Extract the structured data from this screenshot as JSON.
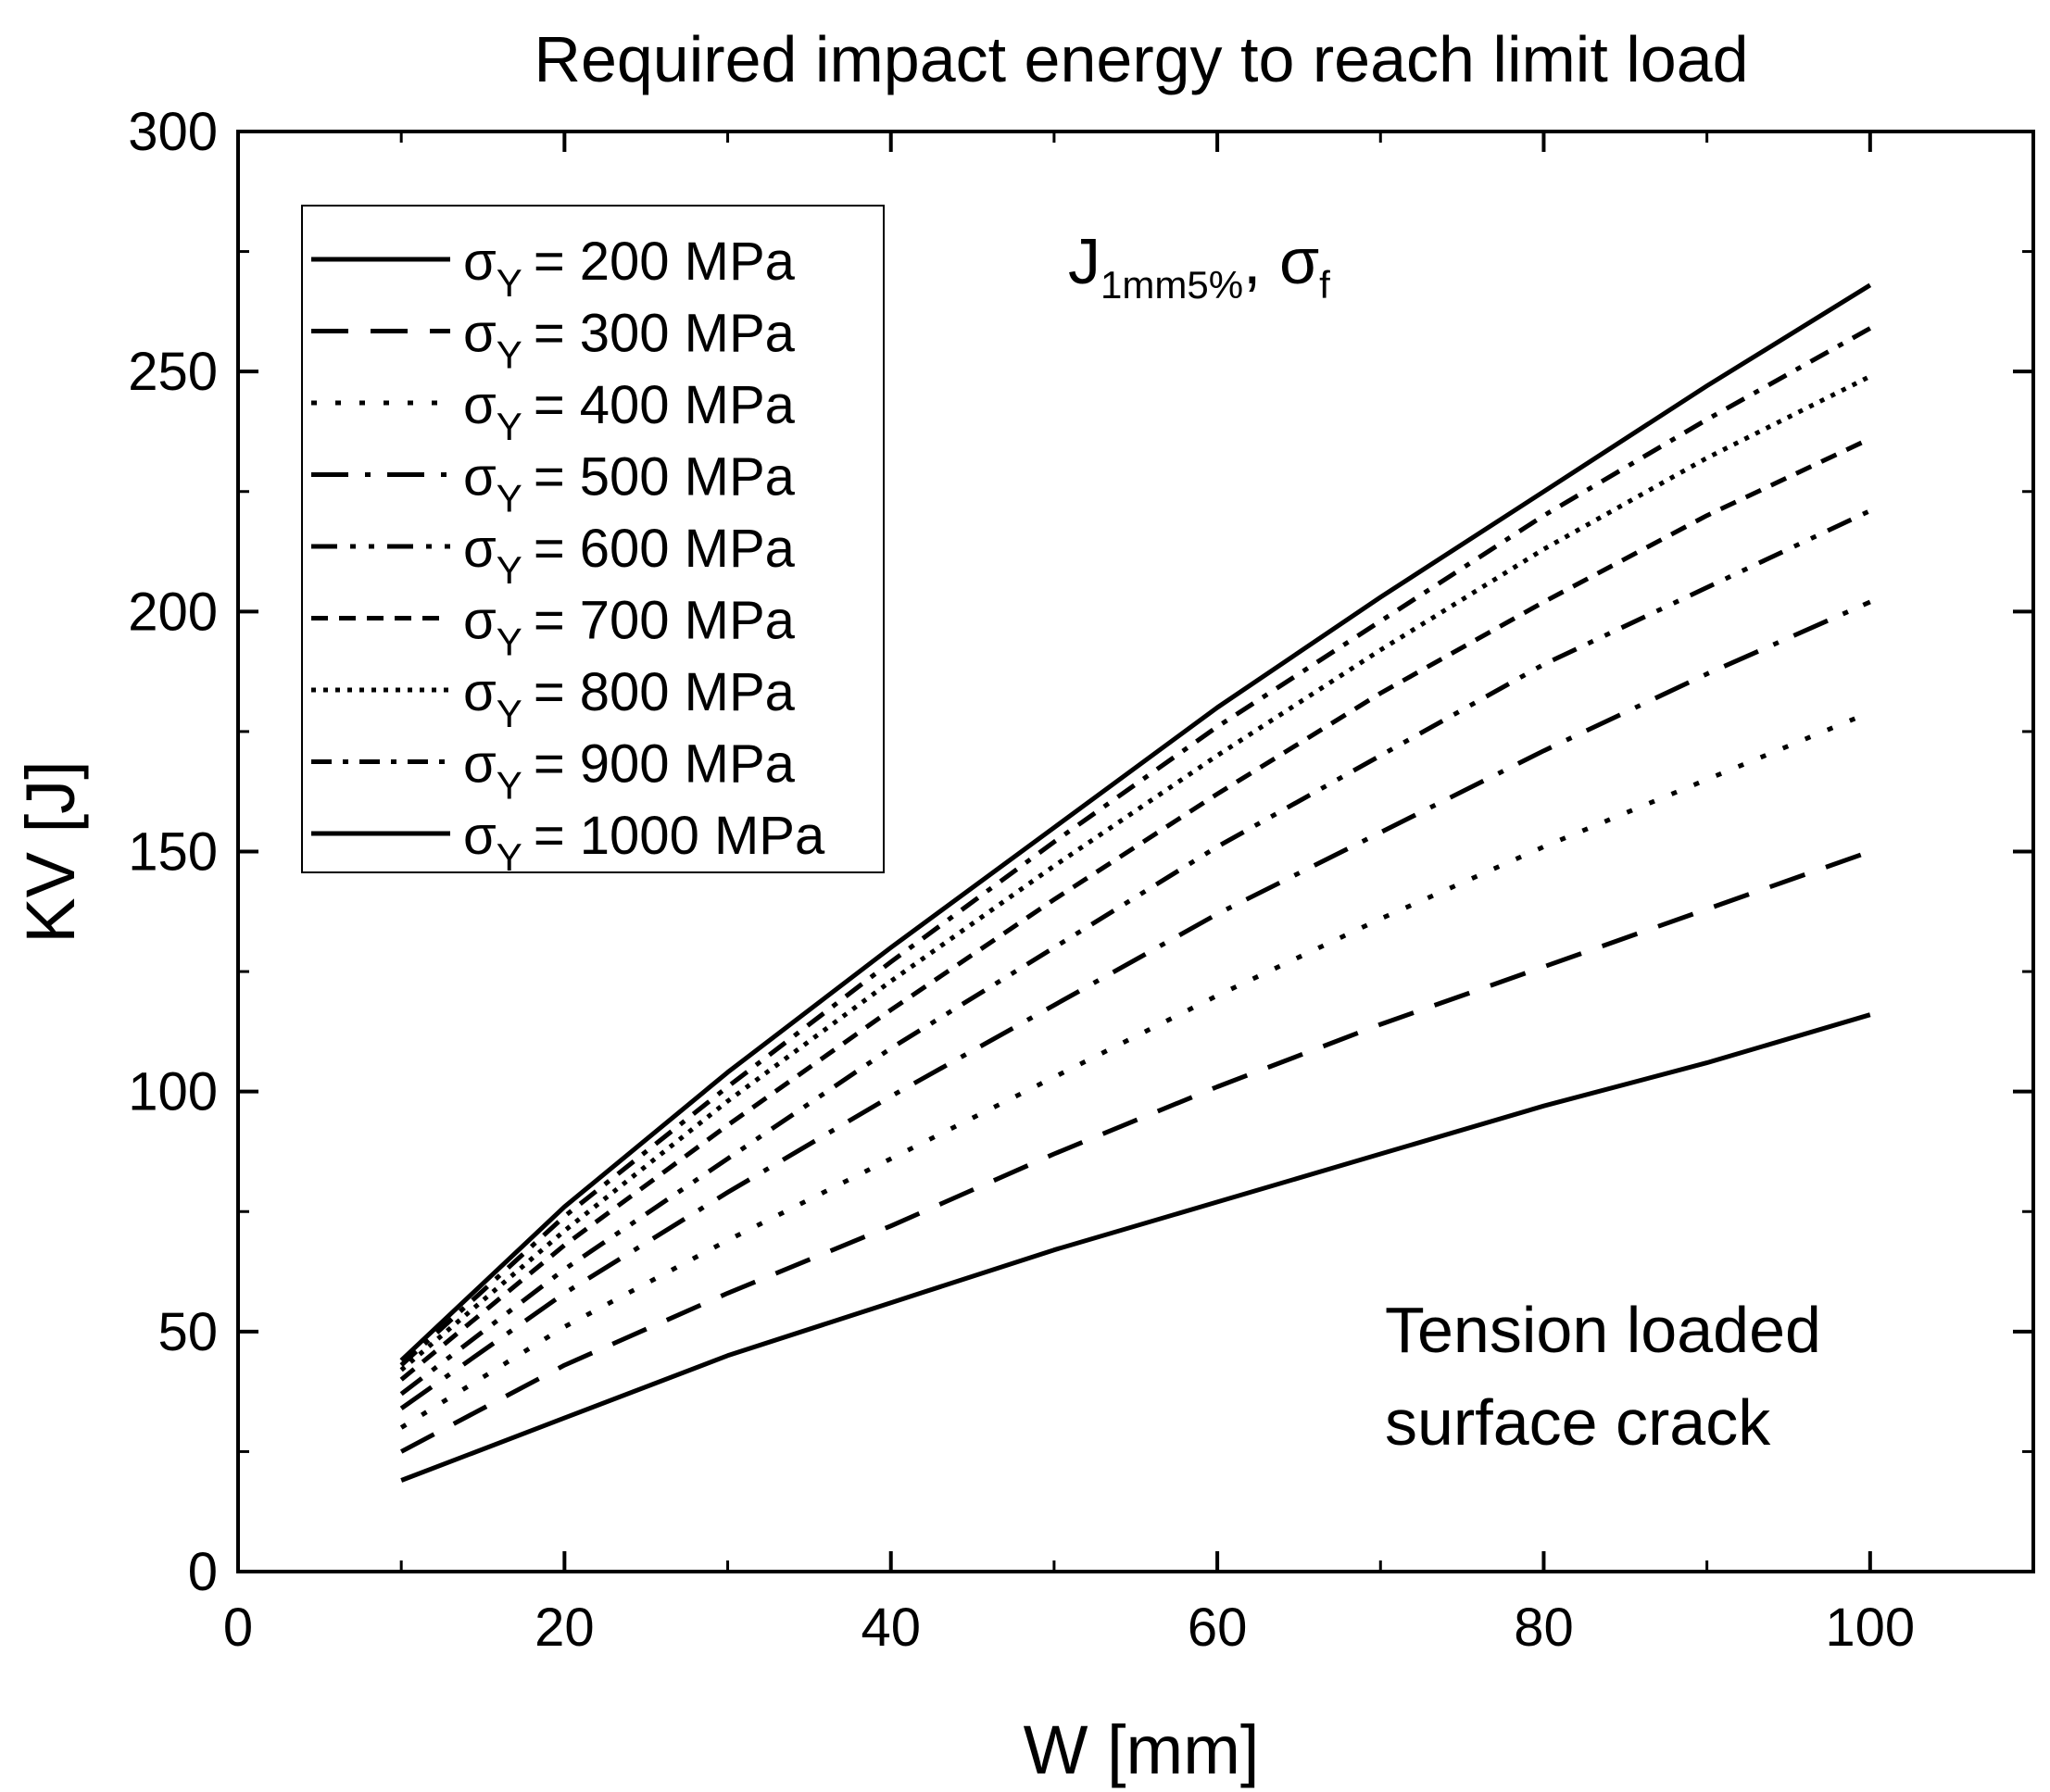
{
  "chart_data": {
    "type": "line",
    "title": "Required impact energy to reach limit load",
    "xlabel": "W [mm]",
    "ylabel": "KV [J]",
    "xlim": [
      0,
      110
    ],
    "ylim": [
      0,
      300
    ],
    "xticks": [
      0,
      20,
      40,
      60,
      80,
      100
    ],
    "yticks": [
      0,
      50,
      100,
      150,
      200,
      250,
      300
    ],
    "grid": false,
    "legend_position": "top-left",
    "legend_symbol": "σ",
    "legend_symbol_subscript": "Y",
    "x": [
      10,
      20,
      30,
      40,
      50,
      60,
      70,
      80,
      90,
      100
    ],
    "series": [
      {
        "name": "= 200 MPa",
        "dash": "solid",
        "values": [
          19,
          32,
          45,
          56,
          67,
          77,
          87,
          97,
          106,
          116
        ]
      },
      {
        "name": "= 300 MPa",
        "dash": "dash",
        "values": [
          25,
          43,
          58,
          72,
          87,
          101,
          114,
          126,
          138,
          150
        ]
      },
      {
        "name": "= 400 MPa",
        "dash": "dot",
        "values": [
          30,
          51,
          69,
          86,
          103,
          120,
          136,
          151,
          165,
          179
        ]
      },
      {
        "name": "= 500 MPa",
        "dash": "dashdot",
        "values": [
          34,
          58,
          79,
          99,
          118,
          137,
          154,
          171,
          187,
          202
        ]
      },
      {
        "name": "= 600 MPa",
        "dash": "dashdotdot",
        "values": [
          37,
          63,
          86,
          109,
          130,
          151,
          170,
          189,
          205,
          221
        ]
      },
      {
        "name": "= 700 MPa",
        "dash": "shortdash",
        "values": [
          40,
          68,
          93,
          117,
          140,
          162,
          183,
          202,
          220,
          236
        ]
      },
      {
        "name": "= 800 MPa",
        "dash": "densedot",
        "values": [
          42,
          71,
          98,
          123,
          147,
          170,
          192,
          213,
          232,
          249
        ]
      },
      {
        "name": "= 900 MPa",
        "dash": "shortdashdot",
        "values": [
          43,
          74,
          101,
          127,
          152,
          176,
          198,
          220,
          240,
          259
        ]
      },
      {
        "name": "= 1000 MPa",
        "dash": "solid",
        "values": [
          44,
          76,
          104,
          130,
          155,
          180,
          203,
          225,
          247,
          268
        ]
      }
    ],
    "annotations": {
      "top_label_main": "J",
      "top_label_sub": "1mm5%",
      "top_label_sep": ", ",
      "top_label_sigma": "σ",
      "top_label_sigma_sub": "f",
      "bottom_right_line1": "Tension loaded",
      "bottom_right_line2": "surface crack"
    }
  }
}
